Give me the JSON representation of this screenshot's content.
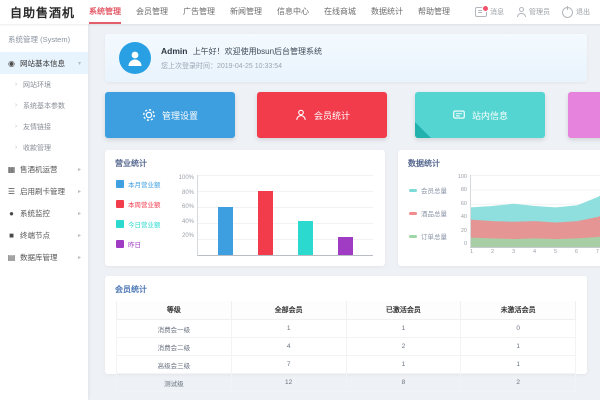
{
  "topbar": {
    "logo": "自助售酒机",
    "nav": [
      {
        "label": "系统管理",
        "active": true
      },
      {
        "label": "会员管理"
      },
      {
        "label": "广告管理"
      },
      {
        "label": "新闻管理"
      },
      {
        "label": "信息中心"
      },
      {
        "label": "在线商城"
      },
      {
        "label": "数据统计"
      },
      {
        "label": "帮助管理"
      }
    ],
    "tools": [
      {
        "icon": "message-icon",
        "label": "消息",
        "has_badge": true
      },
      {
        "icon": "user-icon",
        "label": "管理员"
      },
      {
        "icon": "power-icon",
        "label": "退出"
      }
    ]
  },
  "sidebar": {
    "title": "系统管理 (System)",
    "menu": [
      {
        "type": "item",
        "icon": "site-info-icon",
        "icon_glyph": "◉",
        "label": "网站基本信息",
        "chevron": "▾",
        "active": true
      },
      {
        "type": "sub",
        "icon_glyph": "›",
        "label": "网站环境",
        "chevron": ""
      },
      {
        "type": "sub",
        "icon_glyph": "›",
        "label": "系统基本参数",
        "chevron": ""
      },
      {
        "type": "sub",
        "icon_glyph": "›",
        "label": "友情链接",
        "chevron": ""
      },
      {
        "type": "sub",
        "icon_glyph": "›",
        "label": "收款管理",
        "chevron": ""
      },
      {
        "type": "item",
        "icon": "machine-icon",
        "icon_glyph": "▦",
        "label": "售酒机运营",
        "chevron": "▸"
      },
      {
        "type": "item",
        "icon": "list-icon",
        "icon_glyph": "☰",
        "label": "启用刷卡管理",
        "chevron": "▸"
      },
      {
        "type": "item",
        "icon": "monitor-icon",
        "icon_glyph": "●",
        "label": "系统监控",
        "chevron": "▸"
      },
      {
        "type": "item",
        "icon": "terminal-icon",
        "icon_glyph": "■",
        "label": "终端节点",
        "chevron": "▸"
      },
      {
        "type": "item",
        "icon": "database-icon",
        "icon_glyph": "▤",
        "label": "数据库管理",
        "chevron": "▸"
      }
    ]
  },
  "welcome": {
    "username": "Admin",
    "greeting": "上午好！欢迎使用bsun后台管理系统",
    "last_login": "您上次登录时间：2019-04-25 10:33:54"
  },
  "quick_actions": [
    {
      "label": "管理设置",
      "icon": "gear-icon",
      "color": "#3d9ee0"
    },
    {
      "label": "会员统计",
      "icon": "member-icon",
      "color": "#f23c4c"
    },
    {
      "label": "站内信息",
      "icon": "message-icon",
      "color": "#55d5d1",
      "accent": "#21b2ad"
    },
    {
      "label": "",
      "icon": "",
      "color": "#e583dd"
    }
  ],
  "chart_data": [
    {
      "type": "bar",
      "title": "营业统计",
      "legend_position": "left",
      "legend": [
        {
          "label": "本月营业额",
          "color": "#3d9ee0"
        },
        {
          "label": "本周营业额",
          "color": "#f23c4c"
        },
        {
          "label": "今日营业额",
          "color": "#2bd9cf"
        },
        {
          "label": "昨日",
          "color": "#a03bc4"
        }
      ],
      "values": [
        60,
        80,
        42,
        22
      ],
      "yticks": [
        "100%",
        "80%",
        "60%",
        "40%",
        "20%"
      ],
      "ylim": [
        0,
        100
      ],
      "grid": true
    },
    {
      "type": "area",
      "title": "数据统计",
      "stacked": true,
      "legend_position": "left",
      "legend": [
        {
          "label": "会员总量",
          "color": "#7edbd8"
        },
        {
          "label": "酒品总量",
          "color": "#f28b8b"
        },
        {
          "label": "订单总量",
          "color": "#9fd6a8"
        }
      ],
      "x": [
        "1",
        "2",
        "3",
        "4",
        "5",
        "6",
        "7",
        "8"
      ],
      "series": [
        {
          "name": "订单总量",
          "color": "#9fd6a8",
          "values": [
            13,
            12,
            11,
            12,
            11,
            12,
            14,
            18
          ]
        },
        {
          "name": "酒品总量",
          "color": "#f28b8b",
          "values": [
            25,
            24,
            24,
            24,
            23,
            24,
            28,
            44
          ]
        },
        {
          "name": "会员总量",
          "color": "#7edbd8",
          "values": [
            17,
            21,
            25,
            21,
            21,
            22,
            28,
            33
          ]
        }
      ],
      "yticks": [
        "100",
        "80",
        "60",
        "40",
        "20",
        "0"
      ],
      "ylim": [
        0,
        100
      ],
      "grid": true
    }
  ],
  "member_table": {
    "title": "会员统计",
    "headers": [
      "等级",
      "全部会员",
      "已激活会员",
      "未激活会员"
    ],
    "rows": [
      [
        "消费会一级",
        "1",
        "1",
        "0"
      ],
      [
        "消费会二级",
        "4",
        "2",
        "1"
      ],
      [
        "高级会三级",
        "7",
        "1",
        "1"
      ],
      [
        "测试级",
        "12",
        "8",
        "2"
      ]
    ]
  }
}
